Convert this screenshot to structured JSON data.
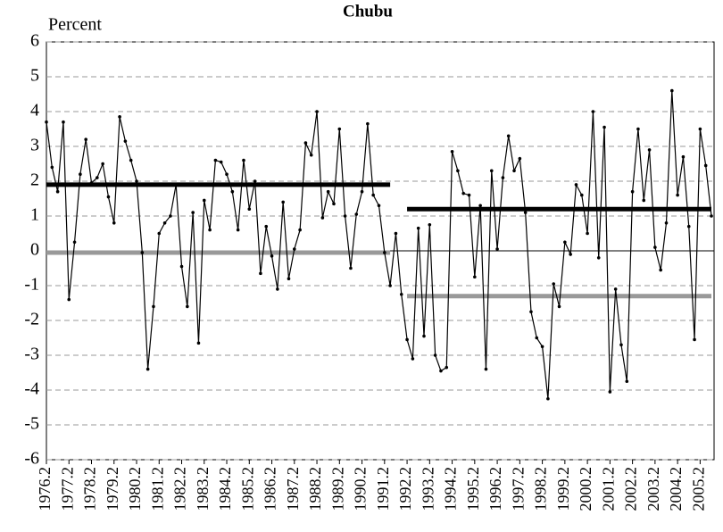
{
  "chart_data": {
    "type": "line",
    "title": "Chubu",
    "y_label": "Percent",
    "categories": [
      "1976.2",
      null,
      null,
      null,
      "1977.2",
      null,
      null,
      null,
      "1978.2",
      null,
      null,
      null,
      "1979.2",
      null,
      null,
      null,
      "1980.2",
      null,
      null,
      null,
      "1981.2",
      null,
      null,
      null,
      "1982.2",
      null,
      null,
      null,
      "1983.2",
      null,
      null,
      null,
      "1984.2",
      null,
      null,
      null,
      "1985.2",
      null,
      null,
      null,
      "1986.2",
      null,
      null,
      null,
      "1987.2",
      null,
      null,
      null,
      "1988.2",
      null,
      null,
      null,
      "1989.2",
      null,
      null,
      null,
      "1990.2",
      null,
      null,
      null,
      "1991.2",
      null,
      null,
      null,
      "1992.2",
      null,
      null,
      null,
      "1993.2",
      null,
      null,
      null,
      "1994.2",
      null,
      null,
      null,
      "1995.2",
      null,
      null,
      null,
      "1996.2",
      null,
      null,
      null,
      "1997.2",
      null,
      null,
      null,
      "1998.2",
      null,
      null,
      null,
      "1999.2",
      null,
      null,
      null,
      "2000.2",
      null,
      null,
      null,
      "2001.2",
      null,
      null,
      null,
      "2002.2",
      null,
      null,
      null,
      "2003.2",
      null,
      null,
      null,
      "2004.2",
      null,
      null,
      null,
      "2005.2",
      null,
      null
    ],
    "series": [
      {
        "color": "#000000",
        "markers": true,
        "width": 1.2,
        "values": [
          3.7,
          2.4,
          1.7,
          3.7,
          -1.4,
          0.25,
          2.2,
          3.2,
          1.95,
          2.1,
          2.5,
          1.55,
          0.8,
          3.85,
          3.15,
          2.6,
          2.0,
          -0.05,
          -3.4,
          -1.6,
          0.5,
          0.8,
          1.0,
          1.9,
          -0.45,
          -1.6,
          1.1,
          -2.65,
          1.45,
          0.6,
          2.6,
          2.55,
          2.2,
          1.7,
          0.6,
          2.6,
          1.2,
          2.0,
          -0.65,
          0.7,
          -0.15,
          -1.1,
          1.4,
          -0.8,
          0.05,
          0.6,
          3.1,
          2.75,
          4.0,
          0.95,
          1.7,
          1.35,
          3.5,
          1.0,
          -0.5,
          1.05,
          1.7,
          3.65,
          1.6,
          1.3,
          -0.05,
          -1.0,
          0.5,
          -1.25,
          -2.55,
          -3.1,
          0.65,
          -2.45,
          0.75,
          -3.0,
          -3.45,
          -3.35,
          2.85,
          2.3,
          1.65,
          1.6,
          -0.75,
          1.3,
          -3.4,
          2.3,
          0.05,
          2.1,
          3.3,
          2.3,
          2.65,
          1.1,
          -1.75,
          -2.5,
          -2.75,
          -4.25,
          -0.95,
          -1.6,
          0.25,
          -0.1,
          1.9,
          1.6,
          0.5,
          4.0,
          -0.2,
          3.55,
          -4.05,
          -1.1,
          -2.7,
          -3.75,
          1.7,
          3.5,
          1.45,
          2.9,
          0.1,
          -0.55,
          0.8,
          4.6,
          1.6,
          2.7,
          0.7,
          -2.55,
          3.5,
          2.45,
          1.0
        ]
      },
      {
        "color": "#000000",
        "markers": false,
        "width": 5,
        "values": [
          1.9,
          1.9,
          1.9,
          1.9,
          1.9,
          1.9,
          1.9,
          1.9,
          1.9,
          1.9,
          1.9,
          1.9,
          1.9,
          1.9,
          1.9,
          1.9,
          1.9,
          1.9,
          1.9,
          1.9,
          1.9,
          1.9,
          1.9,
          1.9,
          1.9,
          1.9,
          1.9,
          1.9,
          1.9,
          1.9,
          1.9,
          1.9,
          1.9,
          1.9,
          1.9,
          1.9,
          1.9,
          1.9,
          1.9,
          1.9,
          1.9,
          1.9,
          1.9,
          1.9,
          1.9,
          1.9,
          1.9,
          1.9,
          1.9,
          1.9,
          1.9,
          1.9,
          1.9,
          1.9,
          1.9,
          1.9,
          1.9,
          1.9,
          1.9,
          1.9,
          1.9,
          1.9,
          null,
          null,
          1.2,
          1.2,
          1.2,
          1.2,
          1.2,
          1.2,
          1.2,
          1.2,
          1.2,
          1.2,
          1.2,
          1.2,
          1.2,
          1.2,
          1.2,
          1.2,
          1.2,
          1.2,
          1.2,
          1.2,
          1.2,
          1.2,
          1.2,
          1.2,
          1.2,
          1.2,
          1.2,
          1.2,
          1.2,
          1.2,
          1.2,
          1.2,
          1.2,
          1.2,
          1.2,
          1.2,
          1.2,
          1.2,
          1.2,
          1.2,
          1.2,
          1.2,
          1.2,
          1.2,
          1.2,
          1.2,
          1.2,
          1.2,
          1.2,
          1.2,
          1.2,
          1.2,
          1.2,
          1.2,
          1.2
        ]
      },
      {
        "color": "#999999",
        "markers": false,
        "width": 5,
        "values": [
          -0.05,
          -0.05,
          -0.05,
          -0.05,
          -0.05,
          -0.05,
          -0.05,
          -0.05,
          -0.05,
          -0.05,
          -0.05,
          -0.05,
          -0.05,
          -0.05,
          -0.05,
          -0.05,
          -0.05,
          -0.05,
          -0.05,
          -0.05,
          -0.05,
          -0.05,
          -0.05,
          -0.05,
          -0.05,
          -0.05,
          -0.05,
          -0.05,
          -0.05,
          -0.05,
          -0.05,
          -0.05,
          -0.05,
          -0.05,
          -0.05,
          -0.05,
          -0.05,
          -0.05,
          -0.05,
          -0.05,
          -0.05,
          -0.05,
          -0.05,
          -0.05,
          -0.05,
          -0.05,
          -0.05,
          -0.05,
          -0.05,
          -0.05,
          -0.05,
          -0.05,
          -0.05,
          -0.05,
          -0.05,
          -0.05,
          -0.05,
          -0.05,
          -0.05,
          -0.05,
          -0.05,
          -0.05,
          null,
          null,
          -1.3,
          -1.3,
          -1.3,
          -1.3,
          -1.3,
          -1.3,
          -1.3,
          -1.3,
          -1.3,
          -1.3,
          -1.3,
          -1.3,
          -1.3,
          -1.3,
          -1.3,
          -1.3,
          -1.3,
          -1.3,
          -1.3,
          -1.3,
          -1.3,
          -1.3,
          -1.3,
          -1.3,
          -1.3,
          -1.3,
          -1.3,
          -1.3,
          -1.3,
          -1.3,
          -1.3,
          -1.3,
          -1.3,
          -1.3,
          -1.3,
          -1.3,
          -1.3,
          -1.3,
          -1.3,
          -1.3,
          -1.3,
          -1.3,
          -1.3,
          -1.3,
          -1.3,
          -1.3,
          -1.3,
          -1.3,
          -1.3,
          -1.3,
          -1.3,
          -1.3,
          -1.3,
          -1.3,
          -1.3
        ]
      }
    ],
    "ylim": [
      -6,
      6
    ],
    "yticks": [
      -6,
      -5,
      -4,
      -3,
      -2,
      -1,
      0,
      1,
      2,
      3,
      4,
      5,
      6
    ],
    "grid": true
  }
}
